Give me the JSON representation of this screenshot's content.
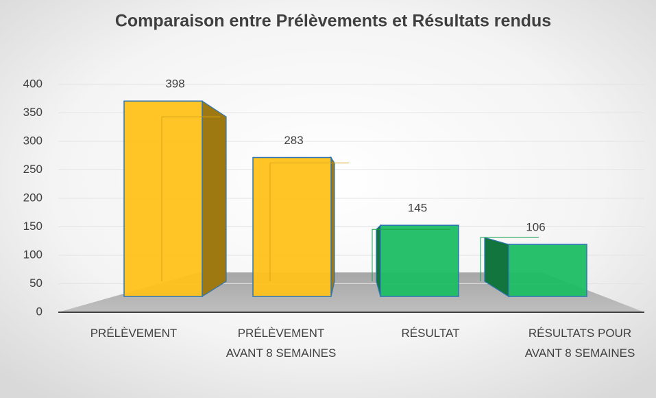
{
  "chart_data": {
    "type": "bar3d",
    "title": "Comparaison entre Prélèvements et Résultats rendus",
    "categories": [
      "PRÉLÈVEMENT",
      "PRÉLÈVEMENT\nAVANT 8 SEMAINES",
      "RÉSULTAT",
      "RÉSULTATS POUR\nAVANT 8 SEMAINES"
    ],
    "values": [
      398,
      283,
      145,
      106
    ],
    "colors": [
      "#FFC21A",
      "#FFC21A",
      "#1DBD63",
      "#1DBD63"
    ],
    "ylim": [
      0,
      400
    ],
    "yticks": [
      0,
      50,
      100,
      150,
      200,
      250,
      300,
      350,
      400
    ],
    "grid": true
  }
}
